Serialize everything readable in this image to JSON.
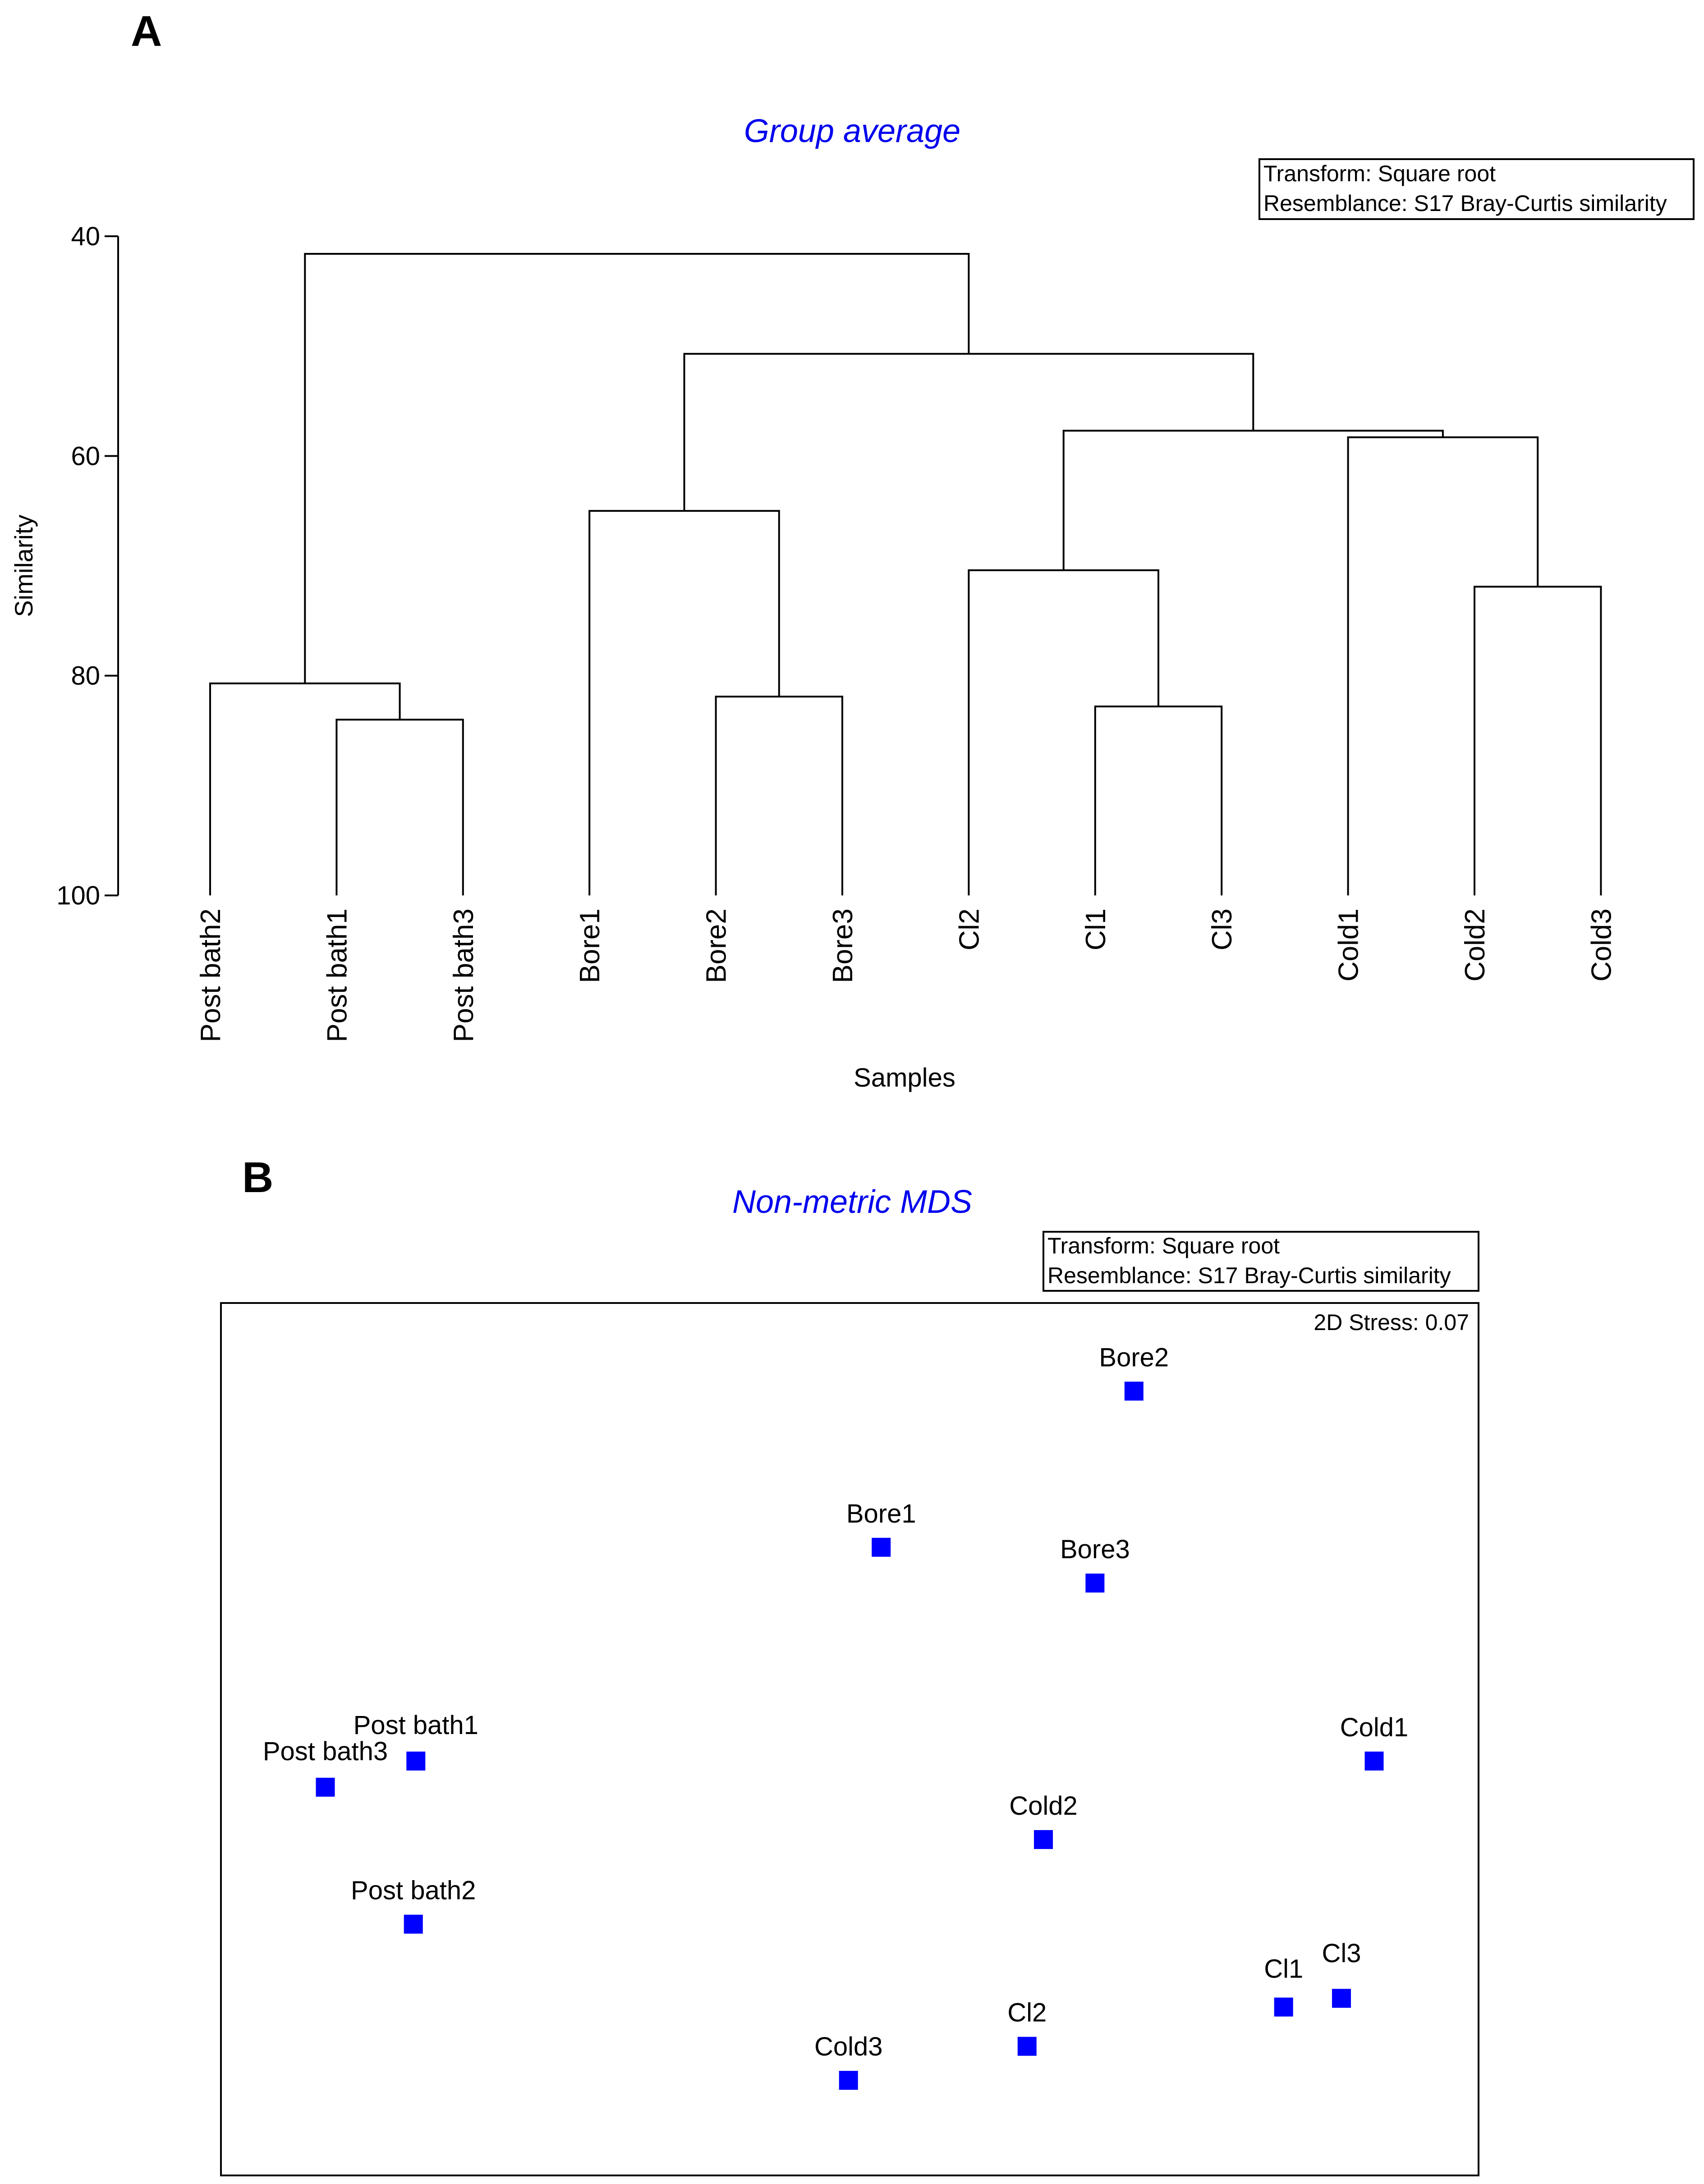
{
  "panel_a_label": "A",
  "panel_b_label": "B",
  "chart_data": [
    {
      "type": "dendrogram",
      "title": "Group average",
      "legend": [
        "Transform: Square root",
        "Resemblance: S17 Bray-Curtis similarity"
      ],
      "xlabel": "Samples",
      "ylabel": "Similarity",
      "ylim": [
        40,
        100
      ],
      "yticks": [
        40,
        60,
        80,
        100
      ],
      "leaves": [
        "Post bath2",
        "Post bath1",
        "Post bath3",
        "Bore1",
        "Bore2",
        "Bore3",
        "Cl2",
        "Cl1",
        "Cl3",
        "Cold1",
        "Cold2",
        "Cold3"
      ],
      "merges": [
        {
          "left": 1,
          "right": 2,
          "similarity": 84.0
        },
        {
          "left": 0,
          "right": 12,
          "similarity": 80.7
        },
        {
          "left": 4,
          "right": 5,
          "similarity": 81.9
        },
        {
          "left": 3,
          "right": 14,
          "similarity": 65.0
        },
        {
          "left": 7,
          "right": 8,
          "similarity": 82.8
        },
        {
          "left": 6,
          "right": 16,
          "similarity": 70.4
        },
        {
          "left": 10,
          "right": 11,
          "similarity": 71.9
        },
        {
          "left": 9,
          "right": 18,
          "similarity": 58.3
        },
        {
          "left": 17,
          "right": 19,
          "similarity": 57.7
        },
        {
          "left": 15,
          "right": 20,
          "similarity": 50.7
        },
        {
          "left": 13,
          "right": 21,
          "similarity": 41.6
        }
      ],
      "color": "#000000",
      "title_color": "#0000ee"
    },
    {
      "type": "scatter",
      "title": "Non-metric MDS",
      "legend": [
        "Transform: Square root",
        "Resemblance: S17 Bray-Curtis similarity"
      ],
      "stress": "2D Stress: 0.07",
      "xlim": [
        0,
        100
      ],
      "ylim": [
        0,
        100
      ],
      "points": [
        {
          "label": "Bore2",
          "x": 72.6,
          "y": 89.9
        },
        {
          "label": "Bore1",
          "x": 52.5,
          "y": 72.0
        },
        {
          "label": "Bore3",
          "x": 69.5,
          "y": 67.9
        },
        {
          "label": "Cold1",
          "x": 91.7,
          "y": 47.5
        },
        {
          "label": "Post bath1",
          "x": 15.5,
          "y": 47.5
        },
        {
          "label": "Post bath3",
          "x": 8.3,
          "y": 44.5
        },
        {
          "label": "Cold2",
          "x": 65.4,
          "y": 38.5
        },
        {
          "label": "Post bath2",
          "x": 15.3,
          "y": 28.8
        },
        {
          "label": "Cl3",
          "x": 89.1,
          "y": 20.3
        },
        {
          "label": "Cl1",
          "x": 84.5,
          "y": 19.3
        },
        {
          "label": "Cl2",
          "x": 64.1,
          "y": 14.8
        },
        {
          "label": "Cold3",
          "x": 49.9,
          "y": 10.9
        }
      ],
      "marker_color": "#0000ff",
      "title_color": "#0000ee"
    }
  ]
}
